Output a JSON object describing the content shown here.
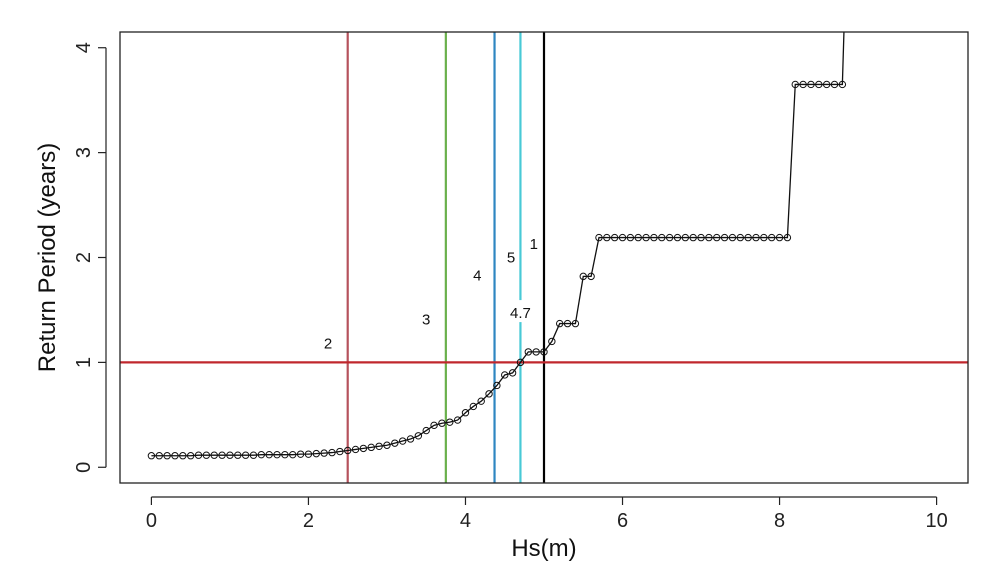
{
  "chart_data": {
    "type": "line",
    "xlabel": "Hs(m)",
    "ylabel": "Return Period (years)",
    "xlim": [
      -0.4,
      10.4
    ],
    "ylim": [
      -0.15,
      4.15
    ],
    "xticks": [
      0,
      2,
      4,
      6,
      8,
      10
    ],
    "xtick_labels": [
      "0",
      "2",
      "4",
      "6",
      "8",
      "10"
    ],
    "yticks": [
      0,
      1,
      2,
      3,
      4
    ],
    "ytick_labels": [
      "0",
      "1",
      "2",
      "3",
      "4"
    ],
    "grid": false,
    "series": [
      {
        "color": "#111111",
        "marker": "circle",
        "x": [
          0.0,
          0.1,
          0.2,
          0.3,
          0.4,
          0.5,
          0.6,
          0.7,
          0.8,
          0.9,
          1.0,
          1.1,
          1.2,
          1.3,
          1.4,
          1.5,
          1.6,
          1.7,
          1.8,
          1.9,
          2.0,
          2.1,
          2.2,
          2.3,
          2.4,
          2.5,
          2.6,
          2.7,
          2.8,
          2.9,
          3.0,
          3.1,
          3.2,
          3.3,
          3.4,
          3.5,
          3.6,
          3.7,
          3.8,
          3.9,
          4.0,
          4.1,
          4.2,
          4.3,
          4.4,
          4.5,
          4.6,
          4.7,
          4.8,
          4.9,
          5.0,
          5.1,
          5.2,
          5.3,
          5.4,
          5.5,
          5.6,
          5.7,
          5.8,
          5.9,
          6.0,
          6.1,
          6.2,
          6.3,
          6.4,
          6.5,
          6.6,
          6.7,
          6.8,
          6.9,
          7.0,
          7.1,
          7.2,
          7.3,
          7.4,
          7.5,
          7.6,
          7.7,
          7.8,
          7.9,
          8.0,
          8.1,
          8.2,
          8.3,
          8.4,
          8.5,
          8.6,
          8.7,
          8.8
        ],
        "y": [
          0.11,
          0.11,
          0.11,
          0.11,
          0.11,
          0.11,
          0.115,
          0.115,
          0.115,
          0.115,
          0.115,
          0.115,
          0.115,
          0.115,
          0.12,
          0.12,
          0.12,
          0.12,
          0.12,
          0.125,
          0.125,
          0.13,
          0.135,
          0.14,
          0.15,
          0.16,
          0.17,
          0.18,
          0.19,
          0.2,
          0.21,
          0.23,
          0.25,
          0.27,
          0.3,
          0.35,
          0.4,
          0.42,
          0.43,
          0.45,
          0.52,
          0.58,
          0.63,
          0.7,
          0.78,
          0.88,
          0.9,
          1.0,
          1.1,
          1.1,
          1.1,
          1.2,
          1.37,
          1.37,
          1.37,
          1.82,
          1.82,
          2.19,
          2.19,
          2.19,
          2.19,
          2.19,
          2.19,
          2.19,
          2.19,
          2.19,
          2.19,
          2.19,
          2.19,
          2.19,
          2.19,
          2.19,
          2.19,
          2.19,
          2.19,
          2.19,
          2.19,
          2.19,
          2.19,
          2.19,
          2.19,
          2.19,
          3.65,
          3.65,
          3.65,
          3.65,
          3.65,
          3.65,
          3.65
        ],
        "end_line_to": {
          "x": 8.82,
          "y": 4.15
        }
      }
    ],
    "hlines": [
      {
        "y": 1.0,
        "color": "#c0272d"
      }
    ],
    "vlines": [
      {
        "x": 2.5,
        "color": "#b5525c"
      },
      {
        "x": 3.75,
        "color": "#6ab04c"
      },
      {
        "x": 4.37,
        "color": "#2e86c1"
      },
      {
        "x": 4.7,
        "color": "#48c9d6"
      },
      {
        "x": 5.0,
        "color": "#000000"
      }
    ],
    "annotations": [
      {
        "text": "2",
        "x": 2.25,
        "y": 1.18,
        "color": "#111111"
      },
      {
        "text": "3",
        "x": 3.5,
        "y": 1.41,
        "color": "#111111"
      },
      {
        "text": "4",
        "x": 4.15,
        "y": 1.83,
        "color": "#111111"
      },
      {
        "text": "5",
        "x": 4.58,
        "y": 2.0,
        "color": "#111111"
      },
      {
        "text": "1",
        "x": 4.87,
        "y": 2.13,
        "color": "#111111"
      },
      {
        "text": "4.7",
        "x": 4.7,
        "y": 1.47,
        "color": "#e02020"
      }
    ]
  }
}
